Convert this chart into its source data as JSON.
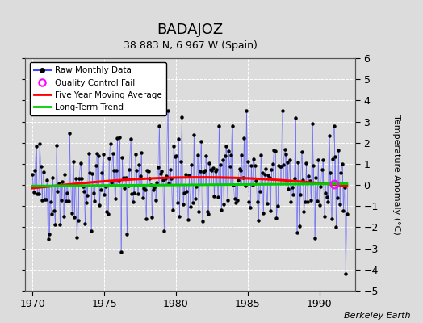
{
  "title": "BADAJOZ",
  "subtitle": "38.883 N, 6.967 W (Spain)",
  "ylabel": "Temperature Anomaly (°C)",
  "credit": "Berkeley Earth",
  "xlim": [
    1969.5,
    1992.5
  ],
  "ylim": [
    -5,
    6
  ],
  "yticks": [
    -5,
    -4,
    -3,
    -2,
    -1,
    0,
    1,
    2,
    3,
    4,
    5,
    6
  ],
  "xticks": [
    1970,
    1975,
    1980,
    1985,
    1990
  ],
  "background_color": "#dcdcdc",
  "plot_bg_color": "#dcdcdc",
  "raw_line_color": "#4444ff",
  "raw_dot_color": "#000000",
  "moving_avg_color": "#ff0000",
  "trend_color": "#00cc00",
  "qc_fail_color": "#ff00ff",
  "legend_items": [
    "Raw Monthly Data",
    "Quality Control Fail",
    "Five Year Moving Average",
    "Long-Term Trend"
  ],
  "title_fontsize": 13,
  "subtitle_fontsize": 9,
  "ylabel_fontsize": 8,
  "credit_fontsize": 8,
  "seed": 42,
  "qc_x": 1991.0,
  "qc_y": 0.05
}
